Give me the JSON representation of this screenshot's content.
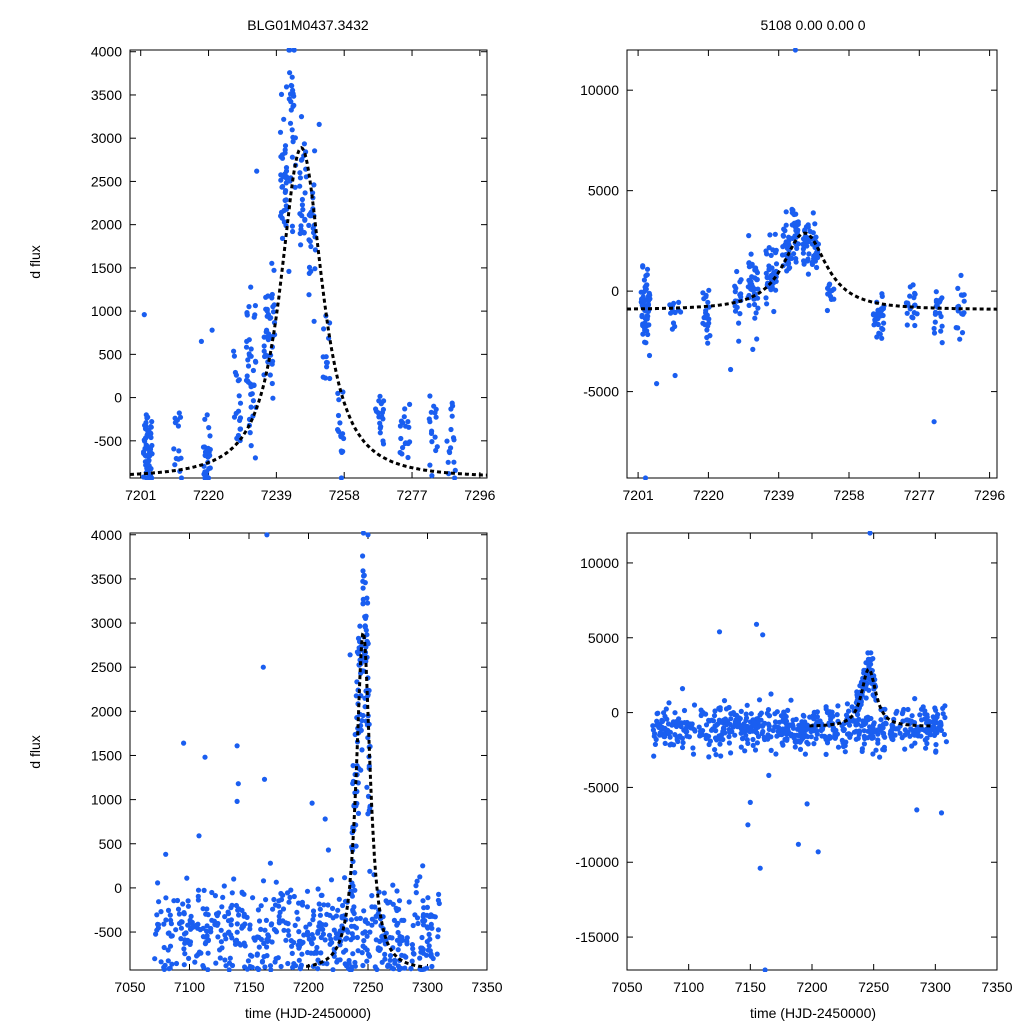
{
  "page": {
    "title_left": "BLG01M0437.3432",
    "title_right": "5108  0.00  0.00  0",
    "ylabel": "d flux",
    "xlabel": "time (HJD-2450000)"
  },
  "colors": {
    "points": "#1a5ef0",
    "fit": "#000000"
  },
  "chart_data": [
    {
      "id": "top-left",
      "type": "scatter",
      "title": "BLG01M0437.3432",
      "xlabel": "",
      "ylabel": "d flux",
      "xlim": [
        7198,
        7298
      ],
      "ylim": [
        -930,
        4020
      ],
      "xticks": [
        7201,
        7220,
        7239,
        7258,
        7277,
        7296
      ],
      "yticks": [
        -500,
        0,
        500,
        1000,
        1500,
        2000,
        2500,
        3000,
        3500,
        4000
      ],
      "model": {
        "t0": 7246,
        "amp": 3820,
        "base": -930,
        "w": 7.5
      },
      "clusters": [
        {
          "t": 7203,
          "spread": 1.2,
          "n": 60,
          "mu": -560,
          "sd": 220
        },
        {
          "t": 7211,
          "spread": 1.5,
          "n": 14,
          "mu": -540,
          "sd": 200
        },
        {
          "t": 7219.5,
          "spread": 1,
          "n": 25,
          "mu": -650,
          "sd": 240
        },
        {
          "t": 7228,
          "spread": 1,
          "n": 18,
          "mu": -100,
          "sd": 300
        },
        {
          "t": 7232,
          "spread": 1.4,
          "n": 40,
          "mu": 300,
          "sd": 450
        },
        {
          "t": 7237,
          "spread": 1.5,
          "n": 40,
          "mu": 800,
          "sd": 350
        },
        {
          "t": 7241,
          "spread": 1,
          "n": 35,
          "mu": 2500,
          "sd": 380
        },
        {
          "t": 7243.5,
          "spread": 1,
          "n": 30,
          "mu": 3200,
          "sd": 500
        },
        {
          "t": 7246.5,
          "spread": 1,
          "n": 25,
          "mu": 2300,
          "sd": 420
        },
        {
          "t": 7249,
          "spread": 1,
          "n": 25,
          "mu": 1800,
          "sd": 380
        },
        {
          "t": 7253,
          "spread": 1,
          "n": 12,
          "mu": 600,
          "sd": 300
        },
        {
          "t": 7257,
          "spread": 1,
          "n": 15,
          "mu": -300,
          "sd": 300
        },
        {
          "t": 7268,
          "spread": 1.2,
          "n": 18,
          "mu": -330,
          "sd": 200
        },
        {
          "t": 7275,
          "spread": 1.5,
          "n": 18,
          "mu": -420,
          "sd": 220
        },
        {
          "t": 7283,
          "spread": 1.2,
          "n": 16,
          "mu": -420,
          "sd": 200
        },
        {
          "t": 7288,
          "spread": 1.2,
          "n": 16,
          "mu": -520,
          "sd": 220
        }
      ],
      "extra_points": [
        [
          7202,
          960
        ],
        [
          7221,
          780
        ],
        [
          7218,
          650
        ],
        [
          7236,
          1160
        ],
        [
          7233.5,
          2620
        ],
        [
          7244,
          4020
        ],
        [
          7251,
          3160
        ]
      ]
    },
    {
      "id": "top-right",
      "type": "scatter",
      "title": "5108  0.00  0.00  0",
      "xlabel": "",
      "ylabel": "",
      "xlim": [
        7198,
        7298
      ],
      "ylim": [
        -9300,
        12000
      ],
      "xticks": [
        7201,
        7220,
        7239,
        7258,
        7277,
        7296
      ],
      "yticks": [
        -5000,
        0,
        5000,
        10000
      ],
      "model": {
        "t0": 7246,
        "amp": 3820,
        "base": -930,
        "w": 7.5
      },
      "clusters": [
        {
          "t": 7203,
          "spread": 1.2,
          "n": 60,
          "mu": -900,
          "sd": 900
        },
        {
          "t": 7211,
          "spread": 1.5,
          "n": 14,
          "mu": -1000,
          "sd": 800
        },
        {
          "t": 7219.5,
          "spread": 1,
          "n": 25,
          "mu": -1200,
          "sd": 900
        },
        {
          "t": 7228,
          "spread": 1,
          "n": 18,
          "mu": -500,
          "sd": 700
        },
        {
          "t": 7232,
          "spread": 1.4,
          "n": 40,
          "mu": 0,
          "sd": 900
        },
        {
          "t": 7237,
          "spread": 1.5,
          "n": 40,
          "mu": 900,
          "sd": 800
        },
        {
          "t": 7241,
          "spread": 1,
          "n": 35,
          "mu": 2200,
          "sd": 700
        },
        {
          "t": 7243.5,
          "spread": 1,
          "n": 30,
          "mu": 2900,
          "sd": 700
        },
        {
          "t": 7246.5,
          "spread": 1,
          "n": 25,
          "mu": 2300,
          "sd": 600
        },
        {
          "t": 7249,
          "spread": 1,
          "n": 25,
          "mu": 2000,
          "sd": 600
        },
        {
          "t": 7253,
          "spread": 1,
          "n": 12,
          "mu": -100,
          "sd": 500
        },
        {
          "t": 7266,
          "spread": 1.5,
          "n": 30,
          "mu": -1300,
          "sd": 500
        },
        {
          "t": 7275,
          "spread": 1.5,
          "n": 20,
          "mu": -800,
          "sd": 500
        },
        {
          "t": 7282,
          "spread": 1.2,
          "n": 20,
          "mu": -1100,
          "sd": 700
        },
        {
          "t": 7288,
          "spread": 1.2,
          "n": 16,
          "mu": -1000,
          "sd": 700
        }
      ],
      "extra_points": [
        [
          7243.5,
          12000
        ],
        [
          7203,
          -9300
        ],
        [
          7281,
          -6500
        ],
        [
          7232,
          -2900
        ],
        [
          7211,
          -4200
        ],
        [
          7206,
          -4600
        ],
        [
          7226,
          -3900
        ]
      ]
    },
    {
      "id": "bottom-left",
      "type": "scatter",
      "title": "",
      "xlabel": "time (HJD-2450000)",
      "ylabel": "d flux",
      "xlim": [
        7050,
        7350
      ],
      "ylim": [
        -930,
        4020
      ],
      "xticks": [
        7050,
        7100,
        7150,
        7200,
        7250,
        7300,
        7350
      ],
      "yticks": [
        -500,
        0,
        500,
        1000,
        1500,
        2000,
        2500,
        3000,
        3500,
        4000
      ],
      "model": {
        "t0": 7246,
        "amp": 3820,
        "base": -930,
        "w": 7.5,
        "xmin": 7198,
        "xmax": 7298
      },
      "band": {
        "t_from": 7070,
        "t_to": 7310,
        "n": 560,
        "mu": -520,
        "sd": 270,
        "floor": -930
      },
      "peak": {
        "t_from": 7236,
        "t_to": 7252,
        "n": 130
      },
      "extra_points": [
        [
          7165,
          4000
        ],
        [
          7250,
          4000
        ],
        [
          7162,
          2500
        ],
        [
          7095,
          1640
        ],
        [
          7140,
          1610
        ],
        [
          7113,
          1480
        ],
        [
          7141,
          1180
        ],
        [
          7140,
          980
        ],
        [
          7163,
          1230
        ],
        [
          7108,
          590
        ],
        [
          7203,
          960
        ],
        [
          7214,
          780
        ],
        [
          7235,
          2640
        ],
        [
          7080,
          380
        ],
        [
          7168,
          280
        ],
        [
          7255,
          150
        ],
        [
          7296,
          250
        ]
      ]
    },
    {
      "id": "bottom-right",
      "type": "scatter",
      "title": "",
      "xlabel": "time (HJD-2450000)",
      "ylabel": "",
      "xlim": [
        7050,
        7350
      ],
      "ylim": [
        -17200,
        12000
      ],
      "xticks": [
        7050,
        7100,
        7150,
        7200,
        7250,
        7300,
        7350
      ],
      "yticks": [
        -15000,
        -10000,
        -5000,
        0,
        5000,
        10000
      ],
      "model": {
        "t0": 7246,
        "amp": 3820,
        "base": -930,
        "w": 7.5,
        "xmin": 7198,
        "xmax": 7298
      },
      "band": {
        "t_from": 7070,
        "t_to": 7310,
        "n": 640,
        "mu": -1100,
        "sd": 700,
        "floor": -4500
      },
      "peak": {
        "t_from": 7236,
        "t_to": 7252,
        "n": 90
      },
      "extra_points": [
        [
          7247,
          12000
        ],
        [
          7162,
          -17200
        ],
        [
          7158,
          -10400
        ],
        [
          7125,
          5400
        ],
        [
          7155,
          5900
        ],
        [
          7160,
          5200
        ],
        [
          7150,
          -6000
        ],
        [
          7148,
          -7500
        ],
        [
          7189,
          -8800
        ],
        [
          7205,
          -9300
        ],
        [
          7196,
          -6100
        ],
        [
          7285,
          -6500
        ],
        [
          7305,
          -6700
        ],
        [
          7165,
          -4200
        ],
        [
          7095,
          1600
        ]
      ]
    }
  ]
}
